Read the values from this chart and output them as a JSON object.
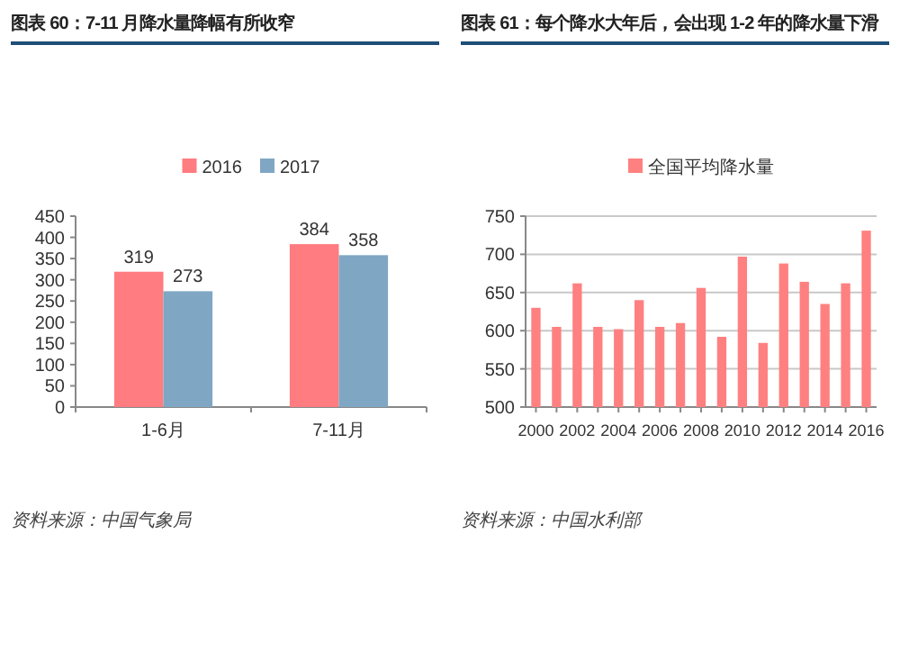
{
  "chart_data": [
    {
      "type": "bar",
      "title": "图表 60：7-11 月降水量降幅有所收窄",
      "categories": [
        "1-6月",
        "7-11月"
      ],
      "series": [
        {
          "name": "2016",
          "color": "#ff7c80",
          "values": [
            319,
            384
          ]
        },
        {
          "name": "2017",
          "color": "#7fa7c4",
          "values": [
            273,
            358
          ]
        }
      ],
      "ylim": [
        0,
        450
      ],
      "yticks": [
        0,
        50,
        100,
        150,
        200,
        250,
        300,
        350,
        400,
        450
      ],
      "data_labels": true,
      "legend": "top",
      "grid": false,
      "annotations": [
        "资料来源：中国气象局"
      ]
    },
    {
      "type": "bar",
      "title": "图表 61：每个降水大年后，会出现 1-2 年的降水量下滑",
      "categories": [
        "2000",
        null,
        "2002",
        null,
        "2004",
        null,
        "2006",
        null,
        "2008",
        null,
        "2010",
        null,
        "2012",
        null,
        "2014",
        null,
        "2016"
      ],
      "series": [
        {
          "name": "全国平均降水量",
          "color": "#ff8080",
          "values": [
            630,
            605,
            662,
            605,
            602,
            640,
            605,
            610,
            656,
            592,
            697,
            584,
            688,
            664,
            635,
            662,
            731
          ]
        }
      ],
      "ylim": [
        500,
        750
      ],
      "yticks": [
        500,
        550,
        600,
        650,
        700,
        750
      ],
      "legend": "top",
      "grid": "y",
      "annotations": [
        "资料来源：中国水利部"
      ]
    }
  ]
}
